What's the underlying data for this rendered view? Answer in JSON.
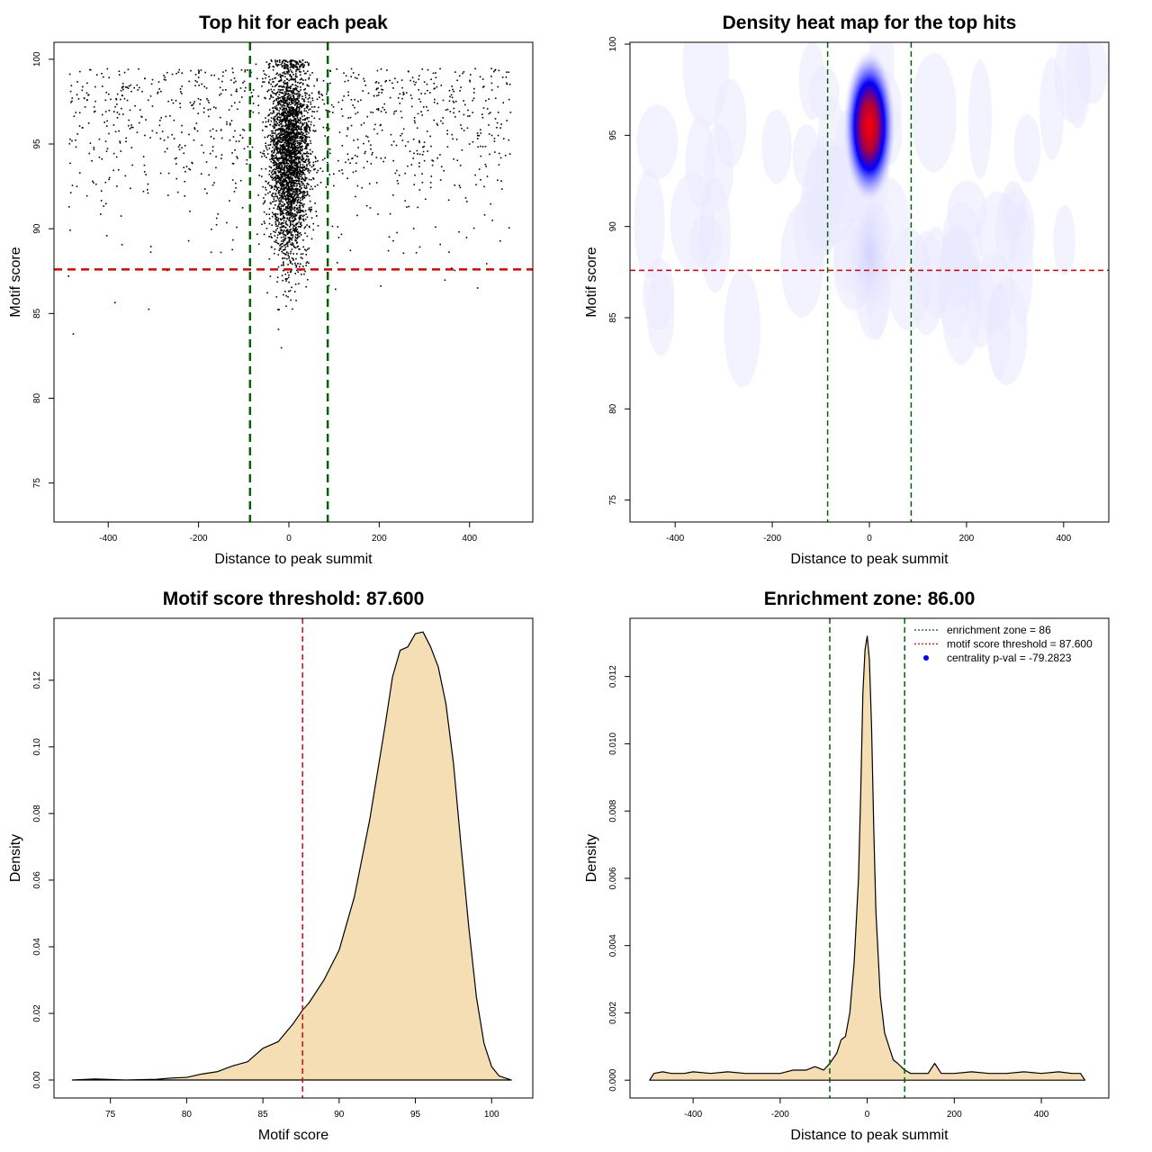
{
  "chart_data": [
    {
      "type": "scatter",
      "title": "Top hit for each peak",
      "xlabel": "Distance to peak summit",
      "ylabel": "Motif score",
      "xlim": [
        -520,
        540
      ],
      "ylim": [
        72.7,
        101.0
      ],
      "xticks": [
        -400,
        -200,
        0,
        200,
        400
      ],
      "xtick_labels": [
        "-400",
        "-200",
        "0",
        "200",
        "400"
      ],
      "yticks": [
        75,
        80,
        85,
        90,
        95,
        100
      ],
      "ytick_labels": [
        "75",
        "80",
        "85",
        "90",
        "95",
        "100"
      ],
      "vlines": [
        -86,
        86
      ],
      "vline_color": "#006400",
      "hline": 87.6,
      "hline_color": "#e00000",
      "point_color": "#000000",
      "n_points_center": 3000,
      "n_points_background": 1000,
      "background_x_range": [
        -490,
        490
      ],
      "background_y_range": [
        79,
        99.5
      ],
      "center_sd": 22,
      "center_score_mean": 94.3,
      "center_score_sd": 3.0
    },
    {
      "type": "heatmap",
      "title": "Density heat map for the top hits",
      "xlabel": "Distance to peak summit",
      "ylabel": "Motif score",
      "xlim": [
        -493,
        493
      ],
      "ylim": [
        73.8,
        100.1
      ],
      "xticks": [
        -400,
        -200,
        0,
        200,
        400
      ],
      "xtick_labels": [
        "-400",
        "-200",
        "0",
        "200",
        "400"
      ],
      "yticks": [
        75,
        80,
        85,
        90,
        95,
        100
      ],
      "ytick_labels": [
        "75",
        "80",
        "85",
        "90",
        "95",
        "100"
      ],
      "vlines": [
        -86,
        86
      ],
      "vline_color": "#006400",
      "hline": 87.6,
      "hline_color": "#e00000",
      "peak_x": 0,
      "peak_y": 95.5,
      "colors": [
        "#ffffff",
        "#0000ff",
        "#ff0000"
      ]
    },
    {
      "type": "area",
      "title": "Motif score threshold: 87.600",
      "xlabel": "Motif score",
      "ylabel": "Density",
      "xlim": [
        71.3,
        102.7
      ],
      "ylim": [
        -0.0054,
        0.1386
      ],
      "xticks": [
        75,
        80,
        85,
        90,
        95,
        100
      ],
      "xtick_labels": [
        "75",
        "80",
        "85",
        "90",
        "95",
        "100"
      ],
      "yticks": [
        0.0,
        0.02,
        0.04,
        0.06,
        0.08,
        0.1,
        0.12
      ],
      "ytick_labels": [
        "0.00",
        "0.02",
        "0.04",
        "0.06",
        "0.08",
        "0.10",
        "0.12"
      ],
      "fill_color": "#f5deb3",
      "vline": 87.6,
      "vline_color": "#e00000",
      "x": [
        72.5,
        74,
        76,
        78,
        79,
        80,
        81,
        82,
        83,
        84,
        85,
        86,
        87,
        87.6,
        88,
        89,
        90,
        91,
        92,
        93,
        93.5,
        94,
        94.5,
        95,
        95.5,
        96,
        96.5,
        97,
        97.5,
        98,
        98.5,
        99,
        99.5,
        100,
        100.5,
        101.3
      ],
      "y": [
        0.0,
        0.0003,
        0.0,
        0.0002,
        0.0006,
        0.0008,
        0.0018,
        0.0025,
        0.0042,
        0.0055,
        0.0095,
        0.0115,
        0.017,
        0.021,
        0.023,
        0.03,
        0.039,
        0.055,
        0.078,
        0.106,
        0.121,
        0.129,
        0.13,
        0.134,
        0.1345,
        0.13,
        0.124,
        0.113,
        0.095,
        0.07,
        0.046,
        0.025,
        0.011,
        0.004,
        0.0012,
        0.0
      ]
    },
    {
      "type": "area",
      "title": "Enrichment zone: 86.00",
      "xlabel": "Distance to peak summit",
      "ylabel": "Density",
      "xlim": [
        -545,
        555
      ],
      "ylim": [
        -0.00053,
        0.01373
      ],
      "xticks": [
        -400,
        -200,
        0,
        200,
        400
      ],
      "xtick_labels": [
        "-400",
        "-200",
        "0",
        "200",
        "400"
      ],
      "yticks": [
        0.0,
        0.002,
        0.004,
        0.006,
        0.008,
        0.01,
        0.012
      ],
      "ytick_labels": [
        "0.000",
        "0.002",
        "0.004",
        "0.006",
        "0.008",
        "0.010",
        "0.012"
      ],
      "fill_color": "#f5deb3",
      "vlines": [
        -86,
        86
      ],
      "vline_color": "#006400",
      "x": [
        -500,
        -490,
        -470,
        -450,
        -420,
        -400,
        -360,
        -320,
        -280,
        -240,
        -200,
        -170,
        -140,
        -120,
        -100,
        -86,
        -70,
        -60,
        -50,
        -40,
        -30,
        -20,
        -15,
        -10,
        -5,
        0,
        5,
        10,
        15,
        20,
        30,
        40,
        50,
        60,
        70,
        86,
        100,
        120,
        140,
        155,
        170,
        200,
        240,
        280,
        320,
        360,
        400,
        440,
        470,
        490,
        500
      ],
      "y": [
        0.0,
        0.0002,
        0.00025,
        0.0002,
        0.0002,
        0.00025,
        0.0002,
        0.00025,
        0.0002,
        0.0002,
        0.0002,
        0.0003,
        0.0003,
        0.0004,
        0.0003,
        0.0005,
        0.0008,
        0.0012,
        0.0013,
        0.002,
        0.0035,
        0.006,
        0.0085,
        0.0115,
        0.0128,
        0.0132,
        0.0125,
        0.0105,
        0.0075,
        0.005,
        0.0025,
        0.0014,
        0.001,
        0.0006,
        0.0005,
        0.0003,
        0.0002,
        0.0002,
        0.0002,
        0.0005,
        0.0002,
        0.0002,
        0.00025,
        0.0002,
        0.0002,
        0.00025,
        0.0002,
        0.00025,
        0.0002,
        0.0002,
        0.0
      ],
      "legend": [
        {
          "label": "enrichment zone = 86",
          "style": "dotted-line",
          "color": "#006400"
        },
        {
          "label": "motif score threshold = 87.600",
          "style": "dotted-line",
          "color": "#e00000"
        },
        {
          "label": "centrality p-val = -79.2823",
          "style": "dot",
          "color": "#0000ff"
        }
      ],
      "legend_position": "top-right"
    }
  ]
}
